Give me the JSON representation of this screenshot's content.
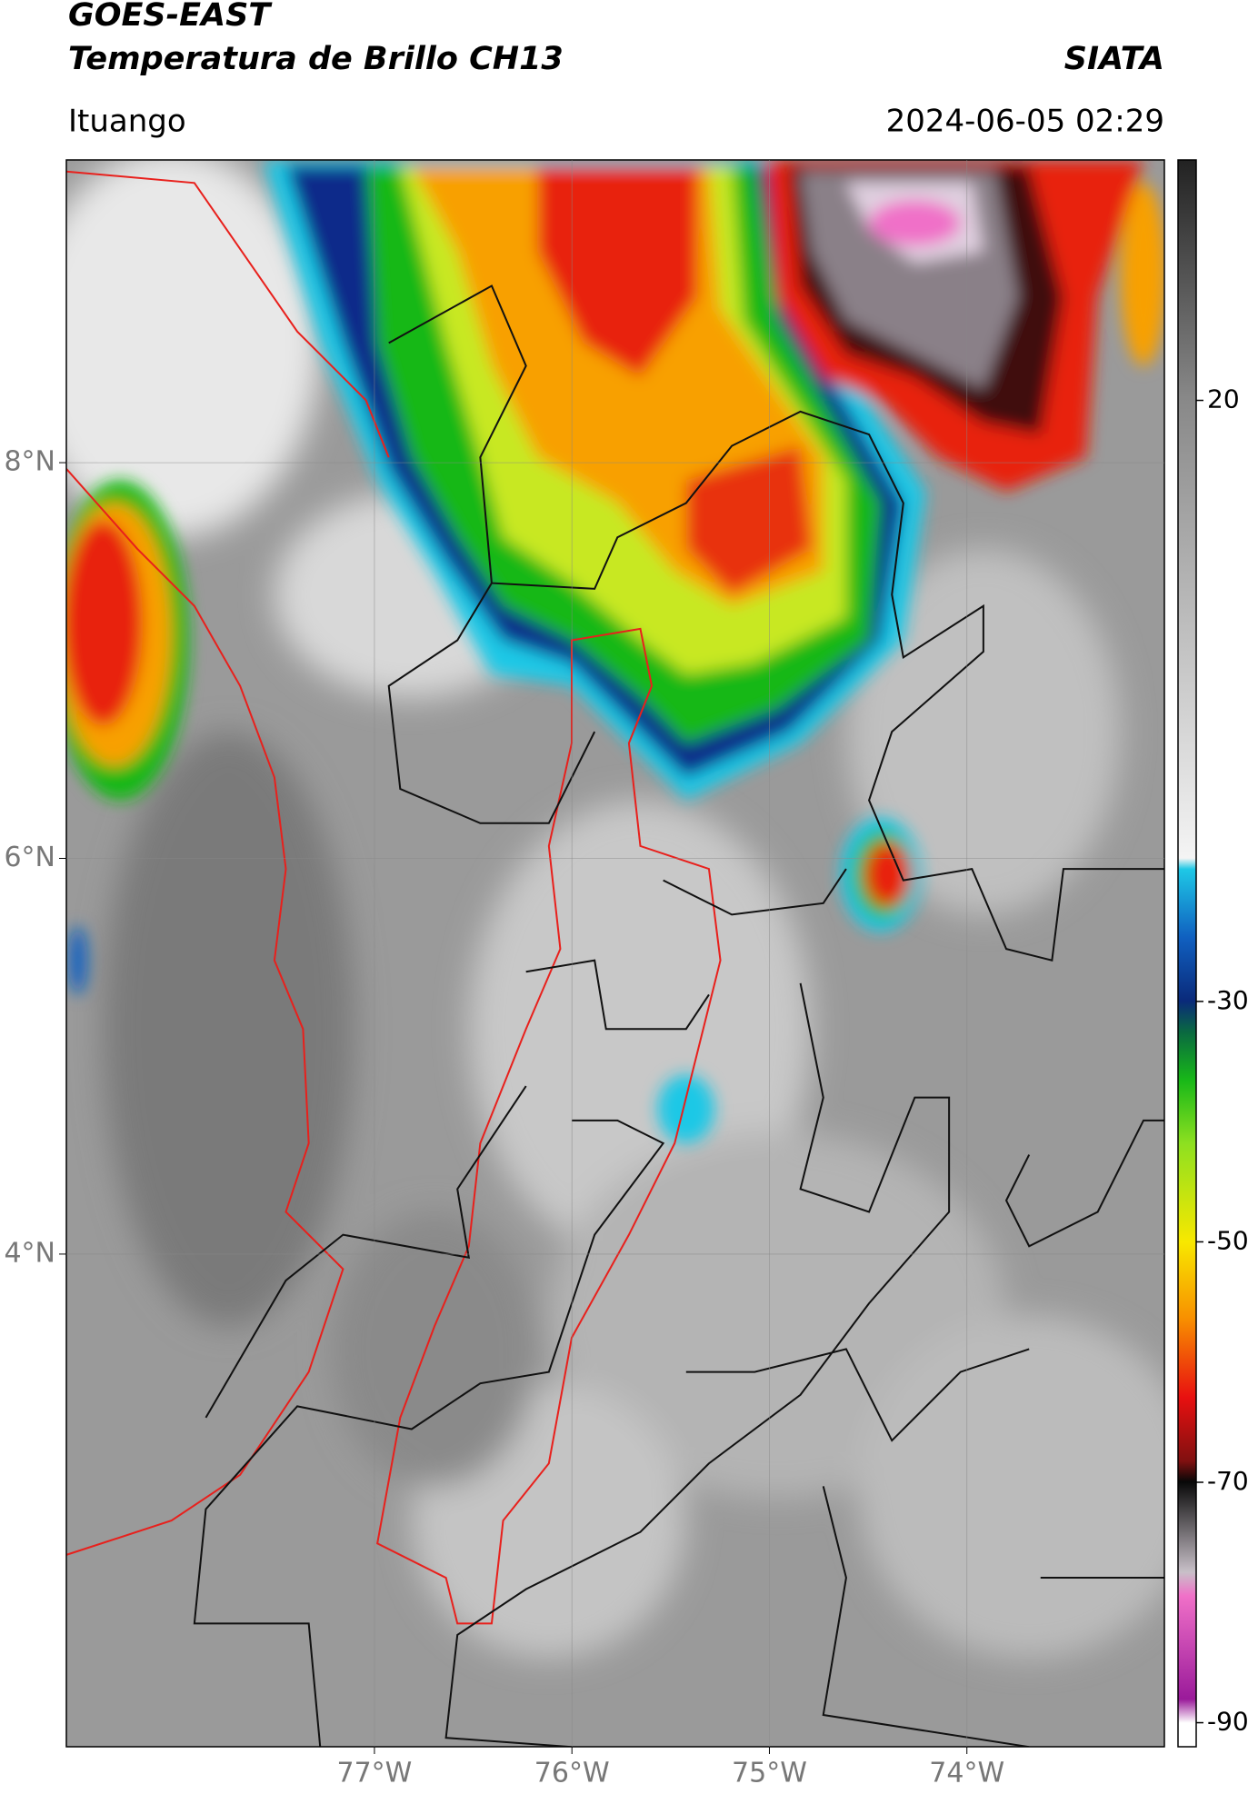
{
  "header": {
    "title": "GOES-EAST",
    "subtitle": "Temperatura de Brillo CH13",
    "source": "SIATA",
    "location": "Ituango",
    "datetime": "2024-06-05 02:29"
  },
  "map": {
    "lonlim": [
      -78.56,
      -73.0
    ],
    "latlim": [
      1.51,
      9.53
    ],
    "lon_ticks": [
      {
        "value": -77,
        "label": "77°W"
      },
      {
        "value": -76,
        "label": "76°W"
      },
      {
        "value": -75,
        "label": "75°W"
      },
      {
        "value": -74,
        "label": "74°W"
      }
    ],
    "lat_ticks": [
      {
        "value": 8,
        "label": "8°N"
      },
      {
        "value": 6,
        "label": "6°N"
      },
      {
        "value": 4,
        "label": "4°N"
      }
    ]
  },
  "colorbar": {
    "lim": [
      -92,
      40
    ],
    "ticks": [
      20,
      -30,
      -50,
      -70,
      -90
    ]
  }
}
